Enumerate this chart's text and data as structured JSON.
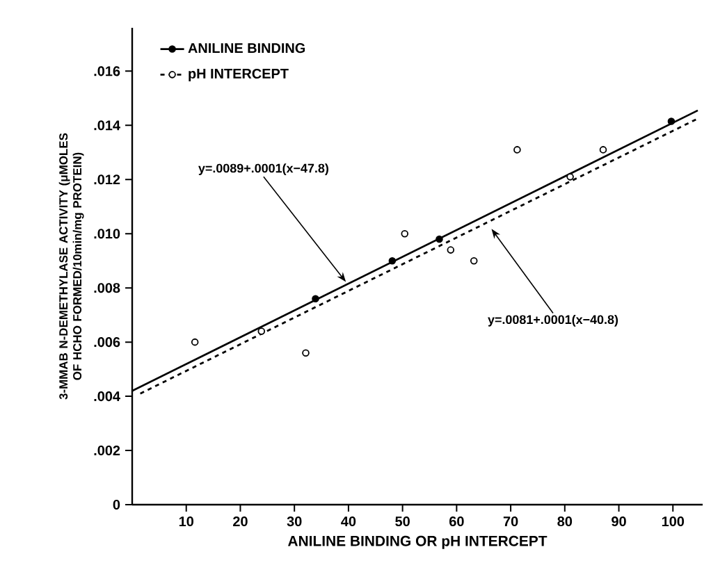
{
  "chart_data": {
    "type": "scatter",
    "xlabel": "ANILINE BINDING OR pH INTERCEPT",
    "ylabel": "3-MMAB N-DEMETHYLASE ACTIVITY (μMOLES OF HCHO FORMED/10min/mg PROTEIN)",
    "xlim": [
      0,
      105.5
    ],
    "ylim": [
      0,
      0.0176
    ],
    "xticks": [
      10,
      20,
      30,
      40,
      50,
      60,
      70,
      80,
      90,
      100
    ],
    "yticks": [
      0,
      {
        "value": 0.002,
        "label": ".002"
      },
      {
        "value": 0.004,
        "label": ".004"
      },
      {
        "value": 0.006,
        "label": ".006"
      },
      {
        "value": 0.008,
        "label": ".008"
      },
      {
        "value": 0.01,
        "label": ".010"
      },
      {
        "value": 0.012,
        "label": ".012"
      },
      {
        "value": 0.014,
        "label": ".014"
      },
      {
        "value": 0.016,
        "label": ".016"
      }
    ],
    "legend": "top left",
    "grid": false,
    "series": [
      {
        "name": "ANILINE BINDING",
        "color": "#000000",
        "line_style": "solid",
        "marker": "circle",
        "x": [
          33.9,
          48.1,
          56.8,
          99.7
        ],
        "values": [
          0.0076,
          0.009,
          0.0098,
          0.01415
        ]
      },
      {
        "name": "pH INTERCEPT",
        "color": "#ffffff",
        "line_style": "dashed",
        "marker": "circle",
        "x": [
          11.6,
          23.9,
          32.1,
          50.4,
          58.9,
          63.2,
          71.2,
          81,
          87.1
        ],
        "values": [
          0.006,
          0.0064,
          0.0056,
          0.01,
          0.0094,
          0.009,
          0.0131,
          0.0121,
          0.0131
        ]
      },
      {
        "type": "line",
        "color": "#000000",
        "line_style": "solid",
        "marker": "none",
        "x": [
          0,
          104.6
        ],
        "values": [
          0.0042,
          0.01455
        ]
      },
      {
        "type": "line",
        "color": "#000000",
        "line_style": "dashed",
        "marker": "none",
        "x": [
          1.5,
          104.6
        ],
        "values": [
          0.0041,
          0.01425
        ]
      }
    ],
    "annotations": [
      {
        "text": "y=.0089+.0001(x−47.8)",
        "x": 40,
        "y": 0.0081
      },
      {
        "text": "y=.0081+.0001(x−40.8)",
        "x": 66,
        "y": 0.0103
      }
    ]
  }
}
